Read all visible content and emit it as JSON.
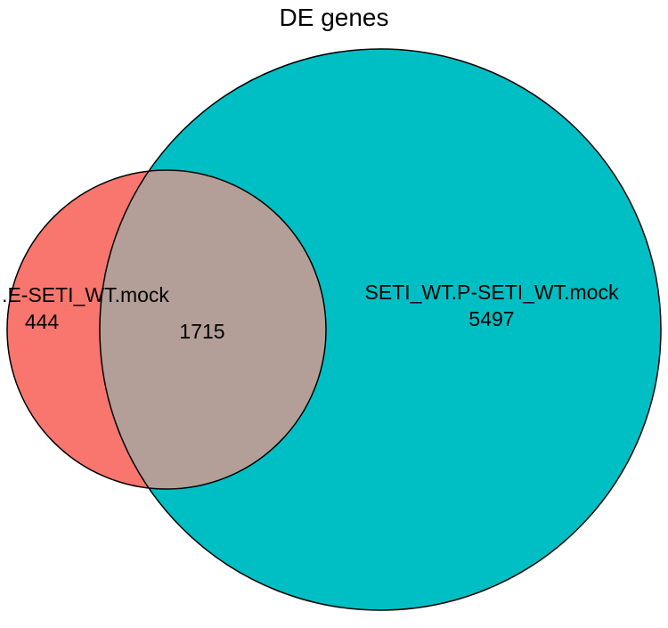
{
  "title": "DE genes",
  "sets": [
    {
      "id": "left",
      "label": ".E-SETI_WT.mock",
      "unique_count": "444",
      "color": "#f8766d"
    },
    {
      "id": "right",
      "label": "SETI_WT.P-SETI_WT.mock",
      "unique_count": "5497",
      "color": "#00bfc4"
    }
  ],
  "intersection": {
    "count": "1715",
    "color": "#b39f98"
  },
  "stroke_color": "#000000"
}
